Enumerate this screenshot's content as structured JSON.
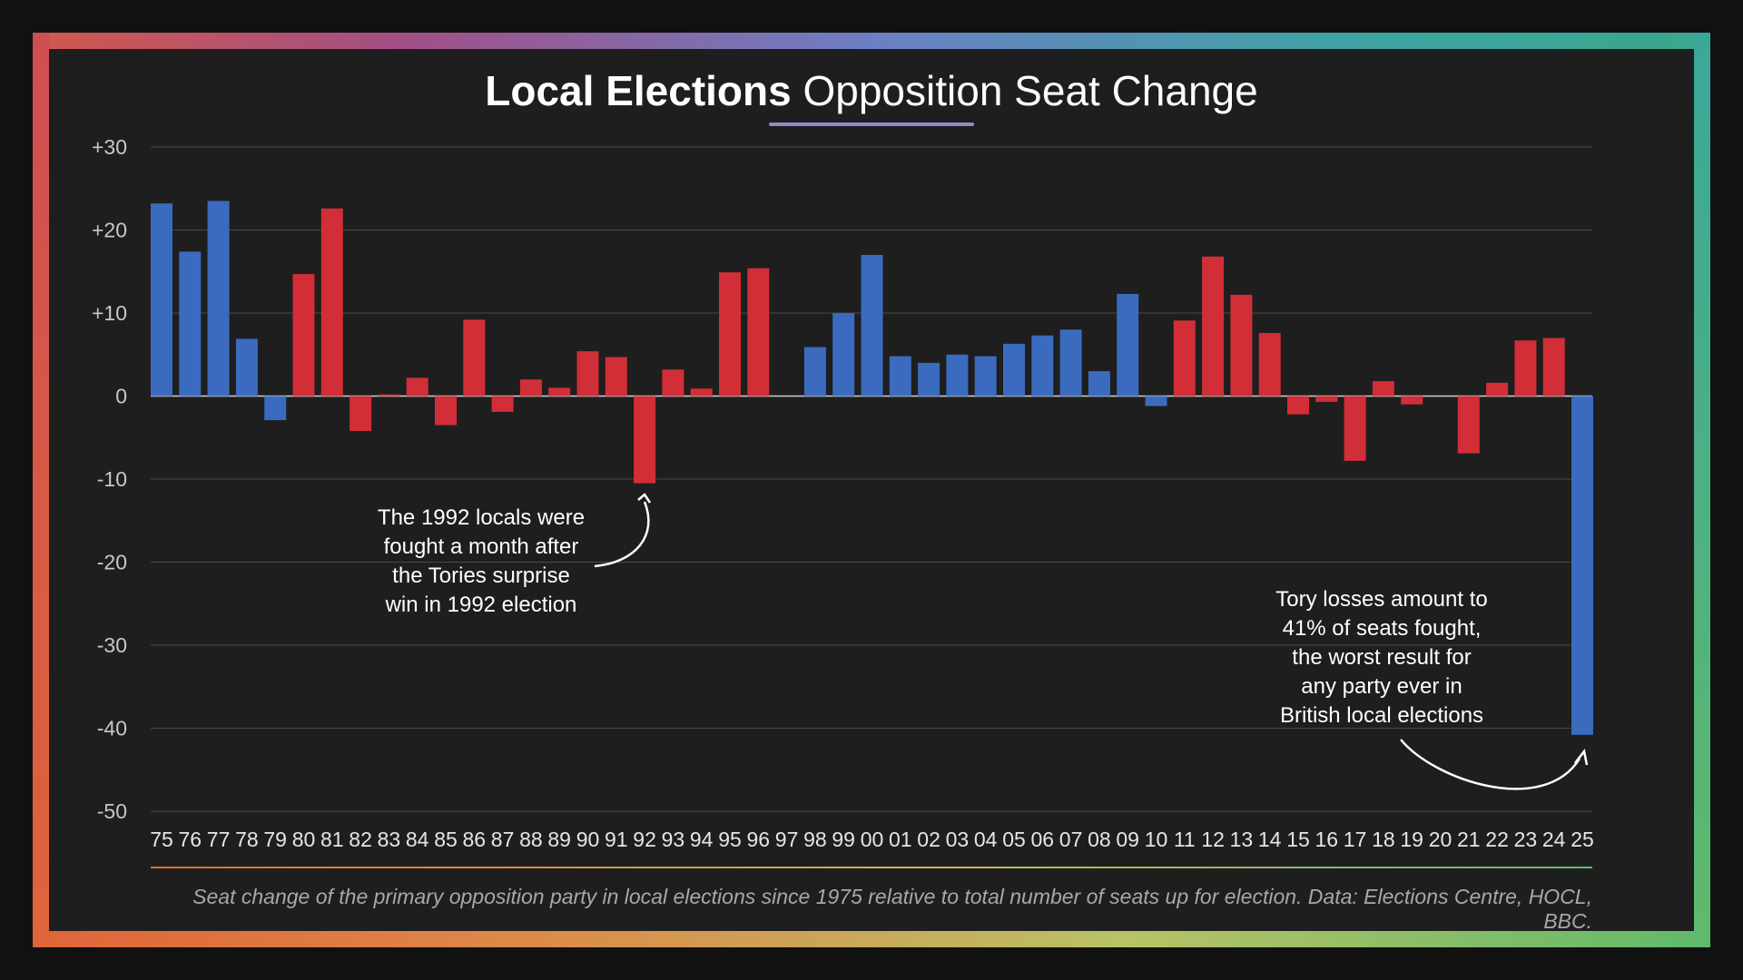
{
  "title": {
    "bold": "Local Elections",
    "light": "Opposition Seat Change"
  },
  "chart_data": {
    "type": "bar",
    "title": "Local Elections Opposition Seat Change",
    "categories": [
      "75",
      "76",
      "77",
      "78",
      "79",
      "80",
      "81",
      "82",
      "83",
      "84",
      "85",
      "86",
      "87",
      "88",
      "89",
      "90",
      "91",
      "92",
      "93",
      "94",
      "95",
      "96",
      "97",
      "98",
      "99",
      "00",
      "01",
      "02",
      "03",
      "04",
      "05",
      "06",
      "07",
      "08",
      "09",
      "10",
      "11",
      "12",
      "13",
      "14",
      "15",
      "16",
      "17",
      "18",
      "19",
      "20",
      "21",
      "22",
      "23",
      "24",
      "25"
    ],
    "values": [
      23.2,
      17.4,
      23.5,
      6.9,
      -2.9,
      14.7,
      22.6,
      -4.2,
      0.2,
      2.2,
      -3.5,
      9.2,
      -1.9,
      2.0,
      1.0,
      5.4,
      4.7,
      -10.5,
      3.2,
      0.9,
      14.9,
      15.4,
      null,
      5.9,
      10.0,
      17.0,
      4.8,
      4.0,
      5.0,
      4.8,
      6.3,
      7.3,
      8.0,
      3.0,
      12.3,
      -1.2,
      9.1,
      16.8,
      12.2,
      7.6,
      -2.2,
      -0.7,
      -7.8,
      1.8,
      -1.0,
      null,
      -6.9,
      1.6,
      6.7,
      7.0,
      -40.8
    ],
    "party_colors": [
      "blue",
      "blue",
      "blue",
      "blue",
      "blue",
      "red",
      "red",
      "red",
      "red",
      "red",
      "red",
      "red",
      "red",
      "red",
      "red",
      "red",
      "red",
      "red",
      "red",
      "red",
      "red",
      "red",
      "none",
      "blue",
      "blue",
      "blue",
      "blue",
      "blue",
      "blue",
      "blue",
      "blue",
      "blue",
      "blue",
      "blue",
      "blue",
      "blue",
      "red",
      "red",
      "red",
      "red",
      "red",
      "red",
      "red",
      "red",
      "red",
      "none",
      "red",
      "red",
      "red",
      "red",
      "blue"
    ],
    "colors": {
      "blue": "#3a6bbf",
      "red": "#d12e37"
    },
    "ylim": [
      -50,
      30
    ],
    "yticks": [
      30,
      20,
      10,
      0,
      -10,
      -20,
      -30,
      -40,
      -50
    ],
    "ytick_labels": [
      "+30",
      "+20",
      "+10",
      "0",
      "-10",
      "-20",
      "-30",
      "-40",
      "-50"
    ],
    "grid": true
  },
  "annotations": {
    "note_1992": [
      "The 1992 locals were",
      "fought a month after",
      "the Tories surprise",
      "win in 1992 election"
    ],
    "note_2025": [
      "Tory losses amount to",
      "41% of seats fought,",
      "the worst result for",
      "any party ever in",
      "British local elections"
    ]
  },
  "caption": "Seat change of the primary opposition party in local elections since 1975 relative to total number of seats up for election. Data: Elections Centre, HOCL, BBC."
}
